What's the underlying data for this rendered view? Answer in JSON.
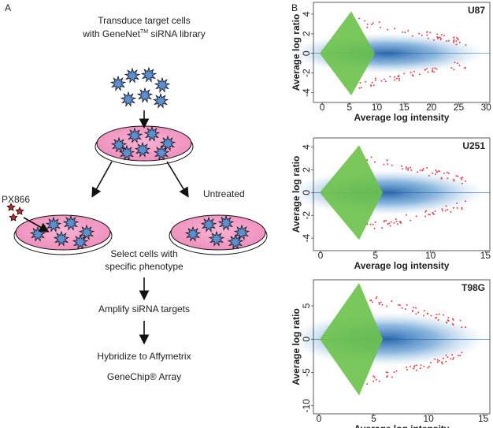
{
  "panel_a": {
    "label": "A",
    "step1": [
      "Transduce target cells",
      "with GeneNet",
      "TM",
      " siRNA library"
    ],
    "drug": "PX866",
    "control": "Untreated",
    "step2": [
      "Select cells with",
      "specific phenotype"
    ],
    "step3": "Amplify siRNA targets",
    "step4": [
      "Hybridize to Affymetrix",
      "GeneChip® Array"
    ]
  },
  "panel_b": {
    "label": "B",
    "plots": [
      {
        "title": "U87",
        "xlabel": "Average log intensity",
        "ylabel": "Average log  ratio",
        "xlim": [
          -1.6,
          30.7
        ],
        "ylim": [
          -5,
          5.2
        ],
        "xticks": [
          0,
          5,
          10,
          15,
          20,
          25,
          30
        ],
        "yticks": [
          -4,
          -2,
          0,
          2,
          4
        ]
      },
      {
        "title": "U251",
        "xlabel": "Average log intensity",
        "ylabel": "Average log  ratio",
        "xlim": [
          -0.64,
          15.4
        ],
        "ylim": [
          -5.1,
          4.8
        ],
        "xticks": [
          0,
          5,
          10,
          15
        ],
        "yticks": [
          -4,
          -2,
          0,
          2,
          4
        ]
      },
      {
        "title": "T98G",
        "xlabel": "Average log intensity",
        "ylabel": "Average log  ratio",
        "xlim": [
          -0.5,
          15.6
        ],
        "ylim": [
          -11.2,
          8.9
        ],
        "xticks": [
          0,
          5,
          10,
          15
        ],
        "yticks": [
          -10,
          -5,
          0,
          5
        ]
      }
    ]
  }
}
